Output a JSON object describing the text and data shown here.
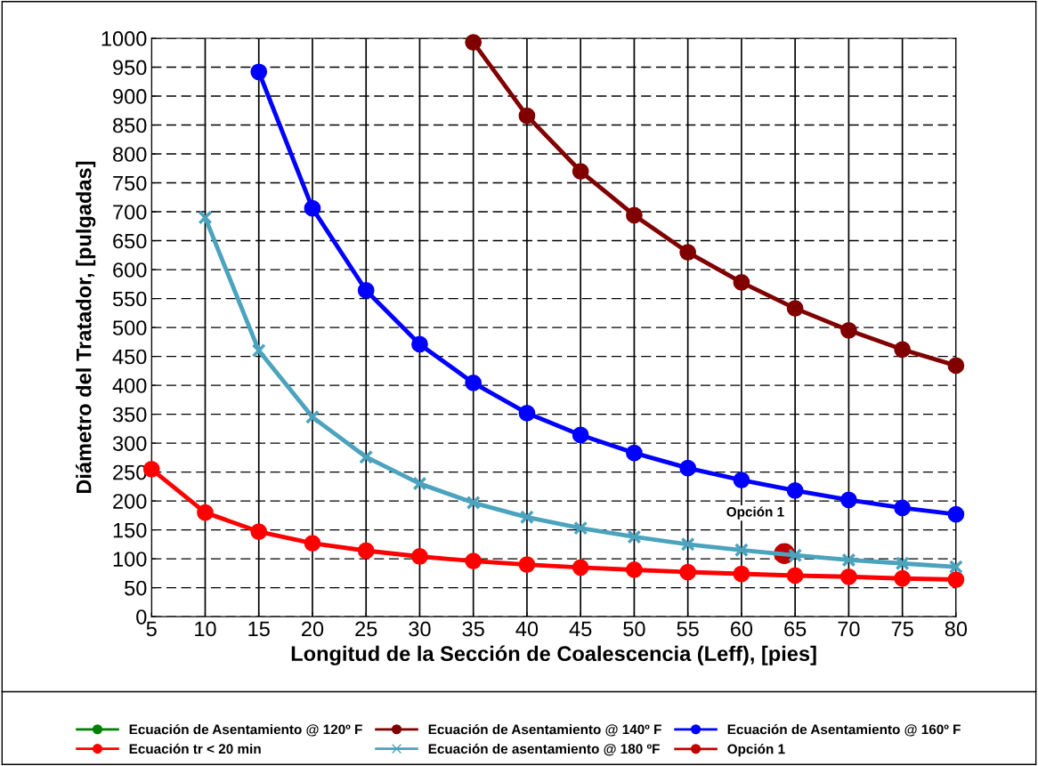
{
  "chart_data": {
    "type": "line",
    "xlabel": "Longitud de la Sección de Coalescencia (Leff), [pies]",
    "ylabel": "Diámetro del Tratador, [pulgadas]",
    "x": [
      5,
      10,
      15,
      20,
      25,
      30,
      35,
      40,
      45,
      50,
      55,
      60,
      65,
      70,
      75,
      80
    ],
    "xlim": [
      5,
      80
    ],
    "xticks": [
      5,
      10,
      15,
      20,
      25,
      30,
      35,
      40,
      45,
      50,
      55,
      60,
      65,
      70,
      75,
      80
    ],
    "ylim": [
      0,
      1000
    ],
    "yticks": [
      0,
      50,
      100,
      150,
      200,
      250,
      300,
      350,
      400,
      450,
      500,
      550,
      600,
      650,
      700,
      750,
      800,
      850,
      900,
      950,
      1000
    ],
    "grid": true,
    "legend": "bottom",
    "series": [
      {
        "name": "Ecuación de Asentamiento @ 120º F",
        "color": "#008000",
        "marker": "circle",
        "values": [
          null,
          null,
          null,
          null,
          null,
          null,
          null,
          null,
          null,
          null,
          null,
          null,
          null,
          null,
          null,
          null
        ]
      },
      {
        "name": "Ecuación de Asentamiento @ 140º F",
        "color": "#800000",
        "marker": "circle",
        "values": [
          null,
          null,
          null,
          null,
          null,
          null,
          993,
          866,
          770,
          694,
          630,
          578,
          533,
          495,
          462,
          434
        ]
      },
      {
        "name": "Ecuación de Asentamiento @ 160º F",
        "color": "#0000ff",
        "marker": "circle",
        "values": [
          null,
          null,
          942,
          706,
          564,
          471,
          404,
          352,
          314,
          283,
          257,
          236,
          218,
          202,
          188,
          177
        ]
      },
      {
        "name": "Ecuación tr < 20 min",
        "color": "#ff0000",
        "marker": "circle",
        "values": [
          255,
          180,
          147,
          127,
          114,
          104,
          96,
          90,
          85,
          81,
          77,
          74,
          71,
          69,
          66,
          64
        ]
      },
      {
        "name": "Ecuación de asentamiento @ 180 ºF",
        "color": "#4ba3bd",
        "marker": "cross",
        "values": [
          null,
          690,
          460,
          345,
          276,
          230,
          197,
          172,
          153,
          138,
          125,
          115,
          106,
          98,
          92,
          86
        ]
      },
      {
        "name": "Opción 1",
        "color": "#c00000",
        "marker": "circle",
        "type": "scatter",
        "x": [
          64
        ],
        "values": [
          109
        ]
      }
    ],
    "annotations": [
      {
        "text": "Opción 1",
        "x": 64,
        "y": 109
      }
    ]
  }
}
